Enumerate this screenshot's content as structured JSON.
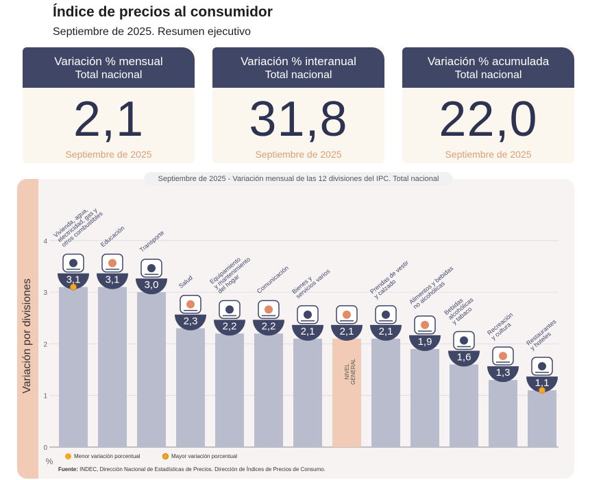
{
  "header": {
    "title": "Índice de precios al consumidor",
    "subtitle": "Septiembre de 2025. Resumen ejecutivo"
  },
  "kpis": [
    {
      "title": "Variación % mensual",
      "sub": "Total nacional",
      "value": "2,1",
      "footer": "Septiembre de 2025"
    },
    {
      "title": "Variación % interanual",
      "sub": "Total nacional",
      "value": "31,8",
      "footer": "Septiembre de 2025"
    },
    {
      "title": "Variación % acumulada",
      "sub": "Total nacional",
      "value": "22,0",
      "footer": "Septiembre de 2025"
    }
  ],
  "chart_caption": "Septiembre de 2025 - Variación mensual de las 12 divisiones del IPC. Total nacional",
  "legend": {
    "min": "Menor variación porcentual",
    "max": "Mayor variación porcentual"
  },
  "source": {
    "label": "Fuente:",
    "text": "INDEC, Dirección Nacional de Estadísticas de Precios. Dirección de Índices de Precios de Consumo."
  },
  "chart_data": {
    "type": "bar",
    "ylabel": "Variación por divisiones",
    "yunit": "%",
    "ylim": [
      0,
      4
    ],
    "yticks": [
      "0",
      "1",
      "2",
      "3",
      "4"
    ],
    "grid": true,
    "categories": [
      [
        "Vivienda, agua,",
        "electricidad, gas y",
        "otros combustibles"
      ],
      [
        "Educación"
      ],
      [
        "Transporte"
      ],
      [
        "Salud"
      ],
      [
        "Equipamiento",
        "y mantenimiento",
        "del hogar"
      ],
      [
        "Comunicación"
      ],
      [
        "Bienes y",
        "servicios varios"
      ],
      [
        "NIVEL",
        "GENERAL"
      ],
      [
        "Prendas de vestir",
        "y calzado"
      ],
      [
        "Alimentos y bebidas",
        "no alcohólicas"
      ],
      [
        "Bebidas",
        "alcohólicas",
        "y tabaco"
      ],
      [
        "Recreación",
        "y cultura"
      ],
      [
        "Restaurantes",
        "y hoteles"
      ]
    ],
    "values": [
      3.1,
      3.1,
      3.0,
      2.3,
      2.2,
      2.2,
      2.1,
      2.1,
      2.1,
      1.9,
      1.6,
      1.3,
      1.1
    ],
    "value_labels": [
      "3,1",
      "3,1",
      "3,0",
      "2,3",
      "2,2",
      "2,2",
      "2,1",
      "2,1",
      "2,1",
      "1,9",
      "1,6",
      "1,3",
      "1,1"
    ],
    "icons": [
      "house-bulb-icon",
      "notebook-icon",
      "bus-icon",
      "first-aid-icon",
      "air-conditioner-icon",
      "smartphone-icon",
      "razor-comb-icon",
      "shopping-basket-icon",
      "tshirt-shoe-icon",
      "chicken-fruit-icon",
      "wine-bottle-icon",
      "beach-umbrella-icon",
      "dining-plate-icon"
    ],
    "highlight_index": 7,
    "max_marker_index": 0,
    "min_marker_index": 12,
    "colors": {
      "bar": "#b8bccd",
      "highlight": "#f2cbb6",
      "badge": "#3f4666",
      "marker": "#f5a623"
    }
  }
}
